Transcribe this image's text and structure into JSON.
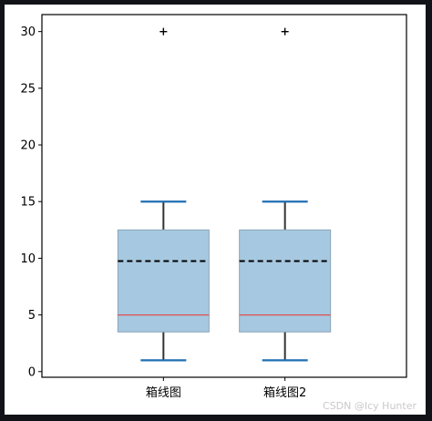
{
  "chart_data": {
    "type": "box",
    "title": "",
    "xlabel": "",
    "ylabel": "",
    "ylim": [
      -0.5,
      31.5
    ],
    "yticks": [
      0,
      5,
      10,
      15,
      20,
      25,
      30
    ],
    "categories": [
      "箱线图",
      "箱线图2"
    ],
    "boxes": [
      {
        "label": "箱线图",
        "whisker_low": 1,
        "q1": 3.5,
        "median": 5,
        "mean": 9.75,
        "q3": 12.5,
        "whisker_high": 15,
        "outliers": [
          30
        ]
      },
      {
        "label": "箱线图2",
        "whisker_low": 1,
        "q1": 3.5,
        "median": 5,
        "mean": 9.75,
        "q3": 12.5,
        "whisker_high": 15,
        "outliers": [
          30
        ]
      }
    ],
    "grid": false
  },
  "colors": {
    "box_fill": "#a6c8e0",
    "box_edge": "#8aa4b8",
    "whisker_cap": "#1f6fb2",
    "whisker": "#333333",
    "median": "#e05050",
    "mean": "#000000"
  },
  "watermark": "CSDN @Icy Hunter"
}
